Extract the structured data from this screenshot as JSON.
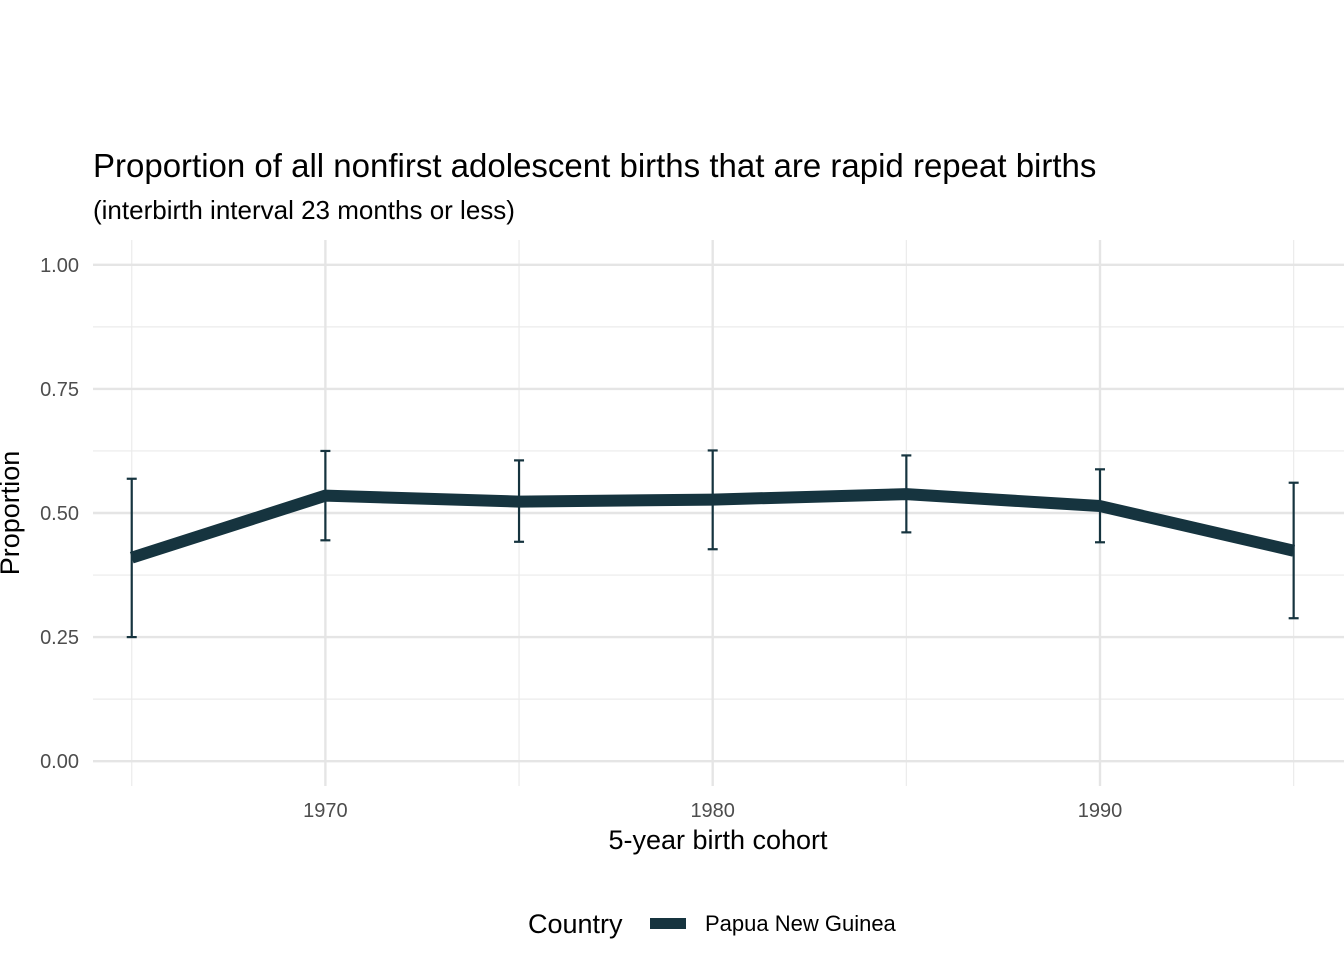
{
  "chart_data": {
    "type": "line",
    "title": "Proportion of all nonfirst adolescent births that are rapid repeat births",
    "subtitle": "(interbirth interval 23 months or less)",
    "xlabel": "5-year birth cohort",
    "ylabel": "Proportion",
    "xlim": [
      1964,
      1996.3
    ],
    "ylim": [
      -0.05,
      1.05
    ],
    "x_ticks": [
      1970,
      1980,
      1990
    ],
    "x_minor_ticks": [
      1965,
      1975,
      1985,
      1995
    ],
    "y_ticks": [
      0.0,
      0.25,
      0.5,
      0.75,
      1.0
    ],
    "y_tick_labels": [
      "0.00",
      "0.25",
      "0.50",
      "0.75",
      "1.00"
    ],
    "y_minor_ticks": [
      0.125,
      0.375,
      0.625,
      0.875
    ],
    "grid": true,
    "legend": {
      "title": "Country",
      "position": "bottom"
    },
    "series": [
      {
        "name": "Papua New Guinea",
        "color": "#16343f",
        "x": [
          1965,
          1970,
          1975,
          1980,
          1985,
          1990,
          1995
        ],
        "y": [
          0.41,
          0.535,
          0.523,
          0.527,
          0.538,
          0.514,
          0.424
        ],
        "error_low": [
          0.25,
          0.445,
          0.442,
          0.427,
          0.461,
          0.441,
          0.288
        ],
        "error_high": [
          0.569,
          0.625,
          0.606,
          0.626,
          0.616,
          0.588,
          0.561
        ]
      }
    ]
  }
}
